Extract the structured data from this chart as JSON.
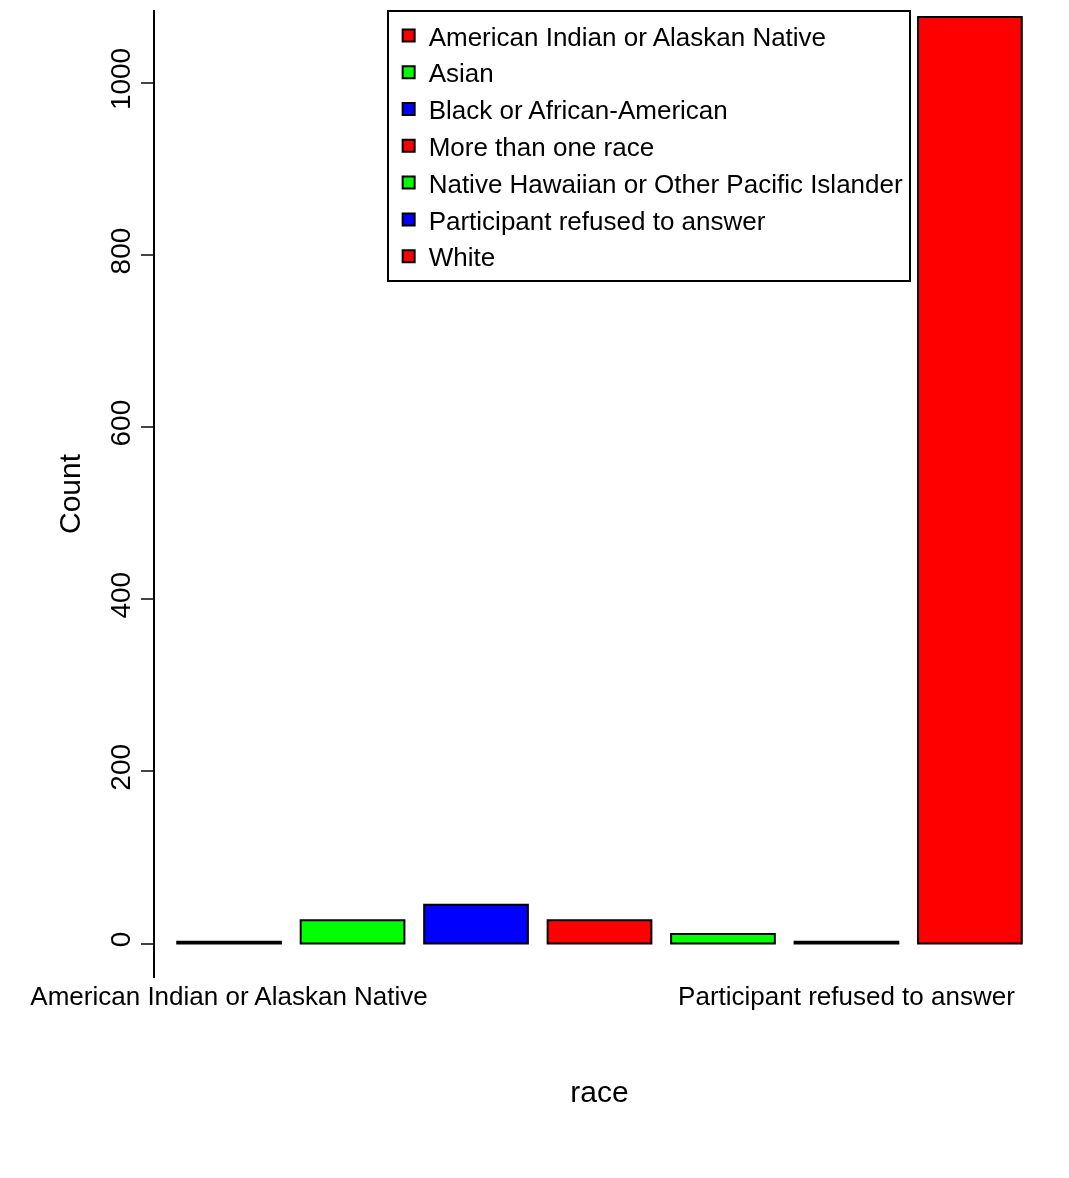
{
  "chart_data": {
    "type": "bar",
    "xlabel": "race",
    "ylabel": "Count",
    "categories": [
      "American Indian or Alaskan Native",
      null,
      null,
      null,
      null,
      "Participant refused to answer",
      null
    ],
    "series": [
      {
        "name": "American Indian or Alaskan Native",
        "color": "#ff0000",
        "values": [
          2,
          null,
          null,
          null,
          null,
          null,
          null
        ]
      },
      {
        "name": "Asian",
        "color": "#00ff00",
        "values": [
          null,
          27,
          null,
          null,
          null,
          null,
          null
        ]
      },
      {
        "name": "Black or African-American",
        "color": "#0000ff",
        "values": [
          null,
          null,
          45,
          null,
          null,
          null,
          null
        ]
      },
      {
        "name": "More than one race",
        "color": "#ff0000",
        "values": [
          null,
          null,
          null,
          27,
          null,
          null,
          null
        ]
      },
      {
        "name": "Native Hawaiian or Other Pacific Islander",
        "color": "#00ff00",
        "values": [
          null,
          null,
          null,
          null,
          11,
          null,
          null
        ]
      },
      {
        "name": "Participant refused to answer",
        "color": "#0000ff",
        "values": [
          null,
          null,
          null,
          null,
          null,
          2,
          null
        ]
      },
      {
        "name": "White",
        "color": "#ff0000",
        "values": [
          null,
          null,
          null,
          null,
          null,
          null,
          1077
        ]
      }
    ],
    "stacked": true,
    "ylim": [
      -40,
      1085
    ],
    "yticks": [
      0,
      200,
      400,
      600,
      800,
      1000
    ],
    "legend": "top right"
  }
}
